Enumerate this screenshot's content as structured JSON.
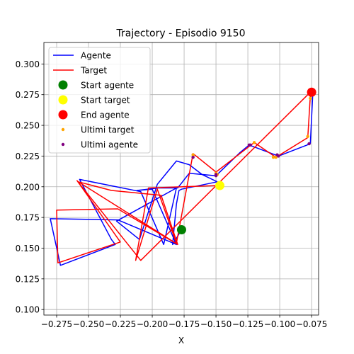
{
  "chart_data": {
    "type": "line",
    "title": "Trajectory - Episodio 9150",
    "xlabel": "X",
    "ylabel": "",
    "xlim": [
      -0.285,
      -0.0695
    ],
    "ylim": [
      0.0955,
      0.3175
    ],
    "grid": true,
    "legend_position": "top-left",
    "x_ticks": [
      -0.275,
      -0.25,
      -0.225,
      -0.2,
      -0.175,
      -0.15,
      -0.125,
      -0.1,
      -0.075
    ],
    "x_tick_labels": [
      "−0.275",
      "−0.250",
      "−0.225",
      "−0.200",
      "−0.175",
      "−0.150",
      "−0.125",
      "−0.100",
      "−0.075"
    ],
    "y_ticks": [
      0.1,
      0.125,
      0.15,
      0.175,
      0.2,
      0.225,
      0.25,
      0.275,
      0.3
    ],
    "y_tick_labels": [
      "0.100",
      "0.125",
      "0.150",
      "0.175",
      "0.200",
      "0.225",
      "0.250",
      "0.275",
      "0.300"
    ],
    "series": [
      {
        "name": "Agente",
        "color": "#0000ff",
        "x": [
          -0.177,
          -0.184,
          -0.181,
          -0.179,
          -0.177,
          -0.149,
          -0.161,
          -0.171,
          -0.181,
          -0.196,
          -0.21,
          -0.228,
          -0.181,
          -0.191,
          -0.209,
          -0.257,
          -0.232,
          -0.229,
          -0.272,
          -0.28,
          -0.227,
          -0.181,
          -0.2,
          -0.212,
          -0.195,
          -0.18,
          -0.171,
          -0.15,
          -0.131,
          -0.124,
          -0.101,
          -0.076,
          -0.074
        ],
        "y": [
          0.165,
          0.153,
          0.186,
          0.197,
          0.198,
          0.204,
          0.21,
          0.218,
          0.221,
          0.202,
          0.157,
          0.172,
          0.199,
          0.153,
          0.196,
          0.206,
          0.157,
          0.153,
          0.136,
          0.174,
          0.173,
          0.153,
          0.198,
          0.197,
          0.199,
          0.199,
          0.211,
          0.209,
          0.228,
          0.234,
          0.225,
          0.235,
          0.277
        ]
      },
      {
        "name": "Target",
        "color": "#ff0000",
        "x": [
          -0.147,
          -0.176,
          -0.203,
          -0.213,
          -0.196,
          -0.181,
          -0.168,
          -0.15,
          -0.12,
          -0.103,
          -0.078,
          -0.076,
          -0.076,
          -0.209,
          -0.259,
          -0.225,
          -0.274,
          -0.275,
          -0.227,
          -0.18,
          -0.193,
          -0.232,
          -0.258,
          -0.183
        ],
        "y": [
          0.201,
          0.2,
          0.199,
          0.14,
          0.198,
          0.154,
          0.227,
          0.212,
          0.236,
          0.224,
          0.24,
          0.274,
          0.277,
          0.14,
          0.205,
          0.155,
          0.138,
          0.181,
          0.182,
          0.153,
          0.193,
          0.197,
          0.204,
          0.155
        ]
      }
    ],
    "markers": [
      {
        "name": "Start agente",
        "color": "#008000",
        "x": -0.177,
        "y": 0.165
      },
      {
        "name": "Start target",
        "color": "#ffff00",
        "x": -0.147,
        "y": 0.201
      },
      {
        "name": "End agente",
        "color": "#ff0000",
        "x": -0.075,
        "y": 0.277
      }
    ],
    "ultimi_target": {
      "name": "Ultimi target",
      "color": "#ffa500",
      "points": [
        [
          -0.078,
          0.241
        ],
        [
          -0.103,
          0.224
        ],
        [
          -0.12,
          0.236
        ],
        [
          -0.15,
          0.211
        ],
        [
          -0.075,
          0.277
        ],
        [
          -0.074,
          0.275
        ],
        [
          -0.076,
          0.272
        ],
        [
          -0.105,
          0.224
        ],
        [
          -0.168,
          0.226
        ],
        [
          -0.149,
          0.21
        ]
      ]
    },
    "ultimi_agente": {
      "name": "Ultimi agente",
      "color": "#800080",
      "points": [
        [
          -0.077,
          0.235
        ],
        [
          -0.101,
          0.225
        ],
        [
          -0.124,
          0.234
        ],
        [
          -0.15,
          0.209
        ],
        [
          -0.075,
          0.276
        ],
        [
          -0.168,
          0.224
        ],
        [
          -0.102,
          0.226
        ],
        [
          -0.076,
          0.275
        ],
        [
          -0.15,
          0.21
        ],
        [
          -0.123,
          0.234
        ]
      ]
    },
    "legend": [
      {
        "label": "Agente",
        "kind": "line",
        "color": "#0000ff"
      },
      {
        "label": "Target",
        "kind": "line",
        "color": "#ff0000"
      },
      {
        "label": "Start agente",
        "kind": "big-dot",
        "color": "#008000"
      },
      {
        "label": "Start target",
        "kind": "big-dot",
        "color": "#ffff00"
      },
      {
        "label": "End agente",
        "kind": "big-dot",
        "color": "#ff0000"
      },
      {
        "label": "Ultimi target",
        "kind": "small-dot",
        "color": "#ffa500"
      },
      {
        "label": "Ultimi agente",
        "kind": "small-dot",
        "color": "#800080"
      }
    ]
  }
}
